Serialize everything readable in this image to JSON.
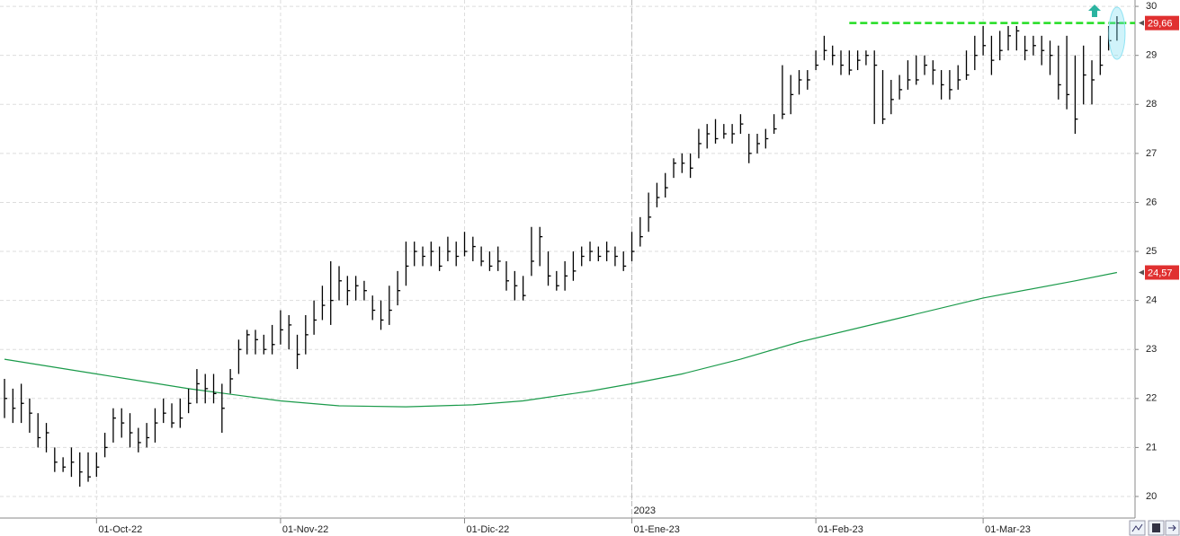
{
  "chart_data": {
    "type": "ohlc",
    "categories": [
      null,
      null,
      null,
      null,
      null,
      null,
      null,
      null,
      null,
      null,
      null,
      "01-Oct-22",
      null,
      null,
      null,
      null,
      null,
      null,
      null,
      null,
      null,
      null,
      null,
      null,
      null,
      null,
      null,
      null,
      null,
      null,
      null,
      null,
      null,
      "01-Nov-22",
      null,
      null,
      null,
      null,
      null,
      null,
      null,
      null,
      null,
      null,
      null,
      null,
      null,
      null,
      null,
      null,
      null,
      null,
      null,
      null,
      null,
      "01-Dic-22",
      null,
      null,
      null,
      null,
      null,
      null,
      null,
      null,
      null,
      null,
      null,
      null,
      null,
      null,
      null,
      null,
      null,
      null,
      null,
      "01-Ene-23",
      null,
      null,
      null,
      null,
      null,
      null,
      null,
      null,
      null,
      null,
      null,
      null,
      null,
      null,
      null,
      null,
      null,
      null,
      null,
      null,
      null,
      "01-Feb-23",
      null,
      null,
      null,
      null,
      null,
      null,
      null,
      null,
      null,
      null,
      null,
      null,
      null,
      null,
      null,
      null,
      null,
      null,
      null,
      "01-Mar-23",
      null,
      null,
      null,
      null,
      null,
      null,
      null,
      null,
      null,
      null,
      null,
      null,
      null,
      null,
      null,
      null
    ],
    "high": [
      22.4,
      22.2,
      22.3,
      22.0,
      21.7,
      21.5,
      21.0,
      20.8,
      21.0,
      20.9,
      20.9,
      20.9,
      21.3,
      21.8,
      21.8,
      21.7,
      21.4,
      21.5,
      21.8,
      22.0,
      21.9,
      22.0,
      22.2,
      22.6,
      22.5,
      22.5,
      22.3,
      22.6,
      23.2,
      23.4,
      23.4,
      23.3,
      23.5,
      23.8,
      23.7,
      23.3,
      23.7,
      24.0,
      24.3,
      24.8,
      24.7,
      24.5,
      24.5,
      24.4,
      24.1,
      24.0,
      24.3,
      24.6,
      25.2,
      25.2,
      25.1,
      25.2,
      25.1,
      25.3,
      25.2,
      25.4,
      25.3,
      25.1,
      25.0,
      25.1,
      24.8,
      24.6,
      24.5,
      25.5,
      25.5,
      25.0,
      24.6,
      24.8,
      25.0,
      25.1,
      25.2,
      25.1,
      25.2,
      25.1,
      25.0,
      25.4,
      25.7,
      26.2,
      26.4,
      26.6,
      26.9,
      27.0,
      27.0,
      27.5,
      27.6,
      27.7,
      27.6,
      27.6,
      27.8,
      27.4,
      27.4,
      27.5,
      27.8,
      28.8,
      28.6,
      28.7,
      28.7,
      29.1,
      29.4,
      29.2,
      29.1,
      29.1,
      29.1,
      29.1,
      29.1,
      28.7,
      28.5,
      28.6,
      28.9,
      29.0,
      29.0,
      28.9,
      28.7,
      28.7,
      28.8,
      29.1,
      29.4,
      29.6,
      29.4,
      29.5,
      29.6,
      29.6,
      29.4,
      29.4,
      29.4,
      29.3,
      29.2,
      29.4,
      29.0,
      29.2,
      28.9,
      29.4,
      29.6,
      29.8
    ],
    "low": [
      21.6,
      21.5,
      21.5,
      21.3,
      21.0,
      20.9,
      20.5,
      20.5,
      20.4,
      20.2,
      20.3,
      20.4,
      20.8,
      21.1,
      21.2,
      21.0,
      20.9,
      21.0,
      21.1,
      21.5,
      21.4,
      21.4,
      21.7,
      21.9,
      21.9,
      21.9,
      21.3,
      22.1,
      22.5,
      22.9,
      22.9,
      22.9,
      22.9,
      23.1,
      23.0,
      22.6,
      22.9,
      23.3,
      23.6,
      23.5,
      24.0,
      23.9,
      24.0,
      24.0,
      23.6,
      23.4,
      23.5,
      23.9,
      24.3,
      24.7,
      24.7,
      24.7,
      24.6,
      24.8,
      24.7,
      24.9,
      24.8,
      24.7,
      24.6,
      24.6,
      24.2,
      24.0,
      24.0,
      24.5,
      24.7,
      24.3,
      24.2,
      24.2,
      24.4,
      24.7,
      24.8,
      24.8,
      24.8,
      24.7,
      24.6,
      24.8,
      25.1,
      25.4,
      25.9,
      26.1,
      26.5,
      26.6,
      26.5,
      26.9,
      27.1,
      27.2,
      27.3,
      27.2,
      27.4,
      26.8,
      27.0,
      27.1,
      27.4,
      27.7,
      27.8,
      28.2,
      28.3,
      28.7,
      28.9,
      28.8,
      28.6,
      28.6,
      28.7,
      28.8,
      27.6,
      27.6,
      27.8,
      28.1,
      28.3,
      28.4,
      28.6,
      28.4,
      28.1,
      28.1,
      28.3,
      28.5,
      28.7,
      29.0,
      28.6,
      28.9,
      29.1,
      29.1,
      28.9,
      29.0,
      28.8,
      28.6,
      28.1,
      27.9,
      27.4,
      28.0,
      28.0,
      28.6,
      29.1,
      29.3
    ],
    "close": [
      22.0,
      21.8,
      21.9,
      21.7,
      21.2,
      21.3,
      20.7,
      20.6,
      20.7,
      20.5,
      20.4,
      20.6,
      21.0,
      21.6,
      21.5,
      21.3,
      21.1,
      21.2,
      21.5,
      21.7,
      21.5,
      21.6,
      21.9,
      22.3,
      22.2,
      22.1,
      21.8,
      22.4,
      23.0,
      23.3,
      23.2,
      23.0,
      23.1,
      23.4,
      23.5,
      22.9,
      23.3,
      23.6,
      23.9,
      24.0,
      24.4,
      24.2,
      24.3,
      24.2,
      23.8,
      23.6,
      23.8,
      24.2,
      24.7,
      25.0,
      24.9,
      25.0,
      24.7,
      25.0,
      24.9,
      25.0,
      25.1,
      24.8,
      24.7,
      24.8,
      24.4,
      24.3,
      24.1,
      24.8,
      25.3,
      24.5,
      24.3,
      24.5,
      24.6,
      24.9,
      25.0,
      24.9,
      25.0,
      24.9,
      24.7,
      25.0,
      25.3,
      25.7,
      26.1,
      26.3,
      26.8,
      26.8,
      26.7,
      27.2,
      27.4,
      27.3,
      27.4,
      27.4,
      27.6,
      27.0,
      27.2,
      27.3,
      27.5,
      27.8,
      28.2,
      28.5,
      28.5,
      28.8,
      29.1,
      29.0,
      28.8,
      28.7,
      28.9,
      29.0,
      28.8,
      27.7,
      28.1,
      28.3,
      28.5,
      28.5,
      28.8,
      28.7,
      28.4,
      28.3,
      28.5,
      28.6,
      29.0,
      29.2,
      28.9,
      29.1,
      29.4,
      29.5,
      29.1,
      29.2,
      29.1,
      29.0,
      28.4,
      28.2,
      27.7,
      28.6,
      28.5,
      28.8,
      29.3,
      29.66
    ],
    "color": "#000000",
    "ma": {
      "color": "#1a9a4a",
      "x": [
        0,
        11,
        22,
        33,
        40,
        48,
        56,
        62,
        70,
        75,
        81,
        88,
        95,
        106,
        117,
        128,
        133
      ],
      "values": [
        22.8,
        22.5,
        22.2,
        21.95,
        21.85,
        21.83,
        21.87,
        21.95,
        22.15,
        22.3,
        22.5,
        22.8,
        23.15,
        23.6,
        24.05,
        24.4,
        24.57
      ]
    },
    "resistance": {
      "value": 29.66,
      "start": 101,
      "color": "#22dd22"
    },
    "last_labels": [
      {
        "value": 29.66,
        "label": "29,66"
      },
      {
        "value": 24.57,
        "label": "24,57"
      }
    ],
    "label_color": "#e03030",
    "annotation": "2023",
    "annotation_at": 75,
    "xlim": [
      -0.54,
      135.16
    ],
    "ylim": [
      19.56,
      30.13
    ],
    "yticks": [
      20,
      21,
      22,
      23,
      24,
      25,
      26,
      27,
      28,
      29,
      30
    ],
    "grid": true
  }
}
